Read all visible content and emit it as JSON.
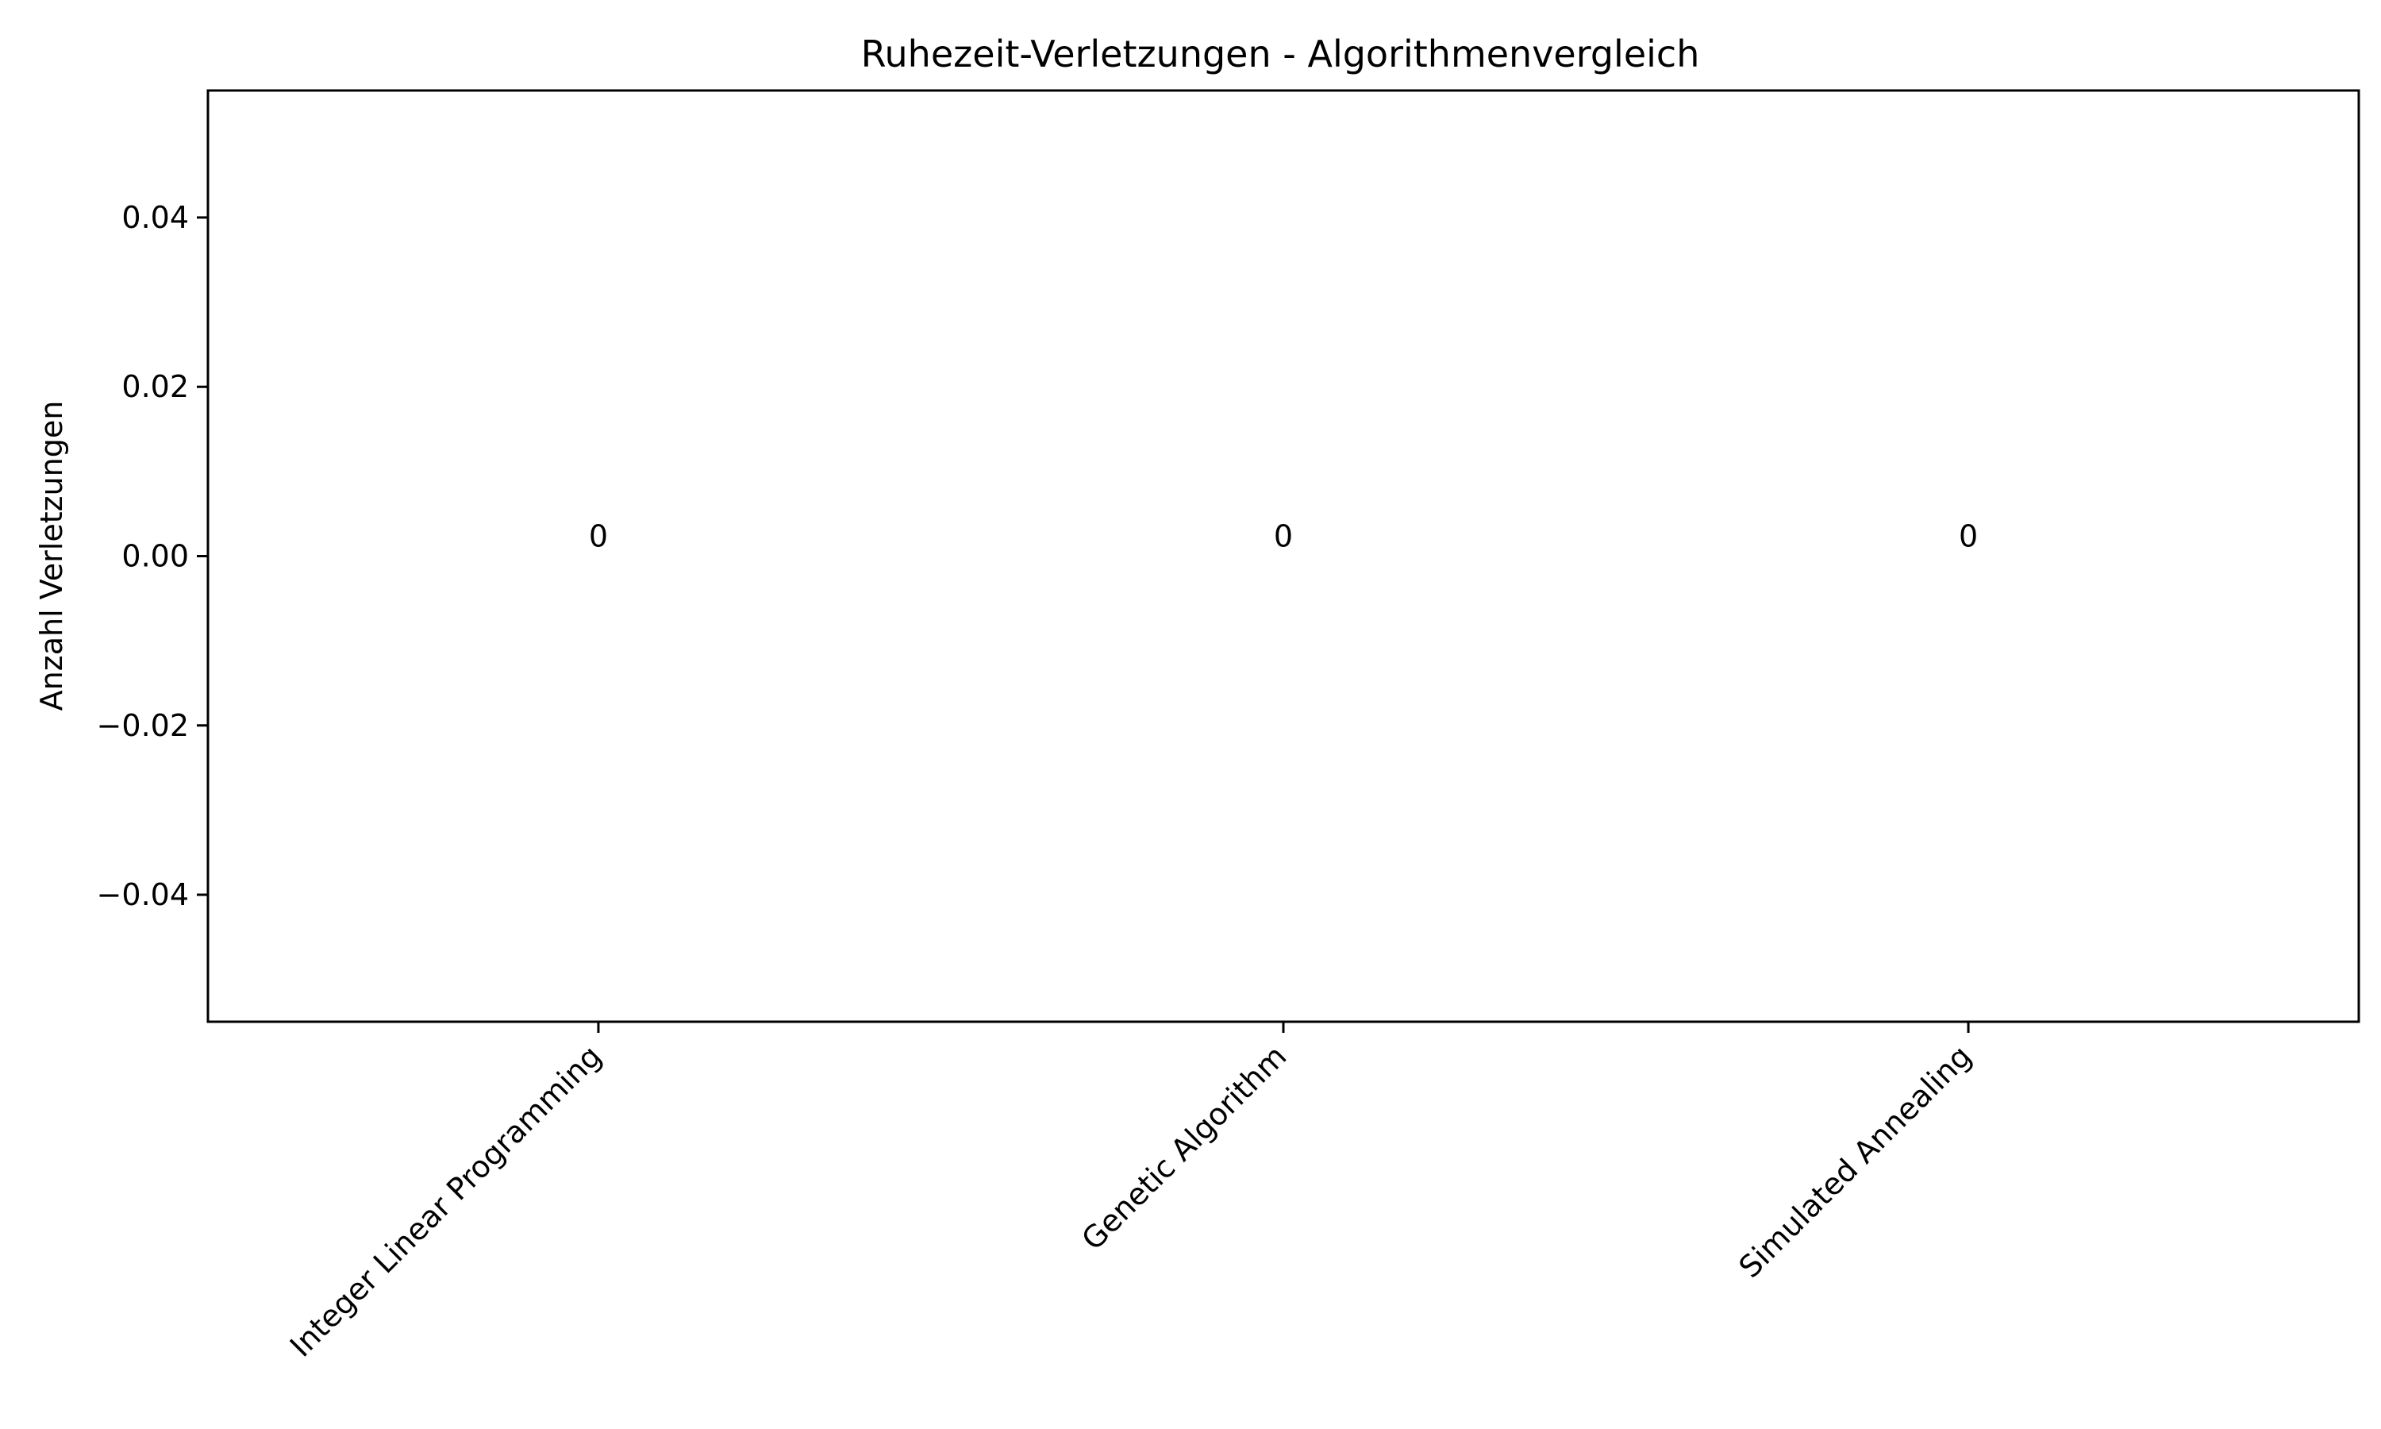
{
  "chart_data": {
    "type": "bar",
    "title": "Ruhezeit-Verletzungen - Algorithmenvergleich",
    "xlabel": "",
    "ylabel": "Anzahl Verletzungen",
    "categories": [
      "Integer Linear Programming",
      "Genetic Algorithm",
      "Simulated Annealing"
    ],
    "values": [
      0,
      0,
      0
    ],
    "data_labels": [
      "0",
      "0",
      "0"
    ],
    "ylim": [
      -0.055,
      0.055
    ],
    "yticks": [
      0.04,
      0.02,
      0.0,
      -0.02,
      -0.04
    ],
    "ytick_labels": [
      "0.04",
      "0.02",
      "0.00",
      "−0.02",
      "−0.04"
    ],
    "grid": false,
    "legend": false
  }
}
